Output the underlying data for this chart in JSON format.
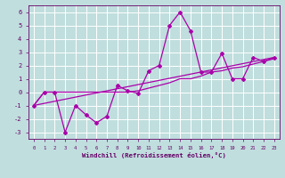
{
  "xlabel": "Windchill (Refroidissement éolien,°C)",
  "xlim": [
    -0.5,
    23.5
  ],
  "ylim": [
    -3.5,
    6.5
  ],
  "yticks": [
    -3,
    -2,
    -1,
    0,
    1,
    2,
    3,
    4,
    5,
    6
  ],
  "xticks": [
    0,
    1,
    2,
    3,
    4,
    5,
    6,
    7,
    8,
    9,
    10,
    11,
    12,
    13,
    14,
    15,
    16,
    17,
    18,
    19,
    20,
    21,
    22,
    23
  ],
  "bg_color": "#c0dede",
  "line_color": "#aa00aa",
  "grid_color": "#ffffff",
  "line1_x": [
    0,
    1,
    2,
    3,
    4,
    5,
    6,
    7,
    8,
    9,
    10,
    11,
    12,
    13,
    14,
    15,
    16,
    17,
    18,
    19,
    20,
    21,
    22,
    23
  ],
  "line1_y": [
    -1,
    0,
    0,
    -3,
    -1,
    -1.7,
    -2.3,
    -1.8,
    0.5,
    0.1,
    -0.1,
    1.6,
    2.0,
    5.0,
    6.0,
    4.6,
    1.5,
    1.5,
    2.9,
    1.0,
    1.0,
    2.6,
    2.3,
    2.6
  ],
  "line2_x": [
    0,
    1,
    2,
    3,
    4,
    5,
    6,
    7,
    8,
    9,
    10,
    11,
    12,
    13,
    14,
    15,
    16,
    17,
    18,
    19,
    20,
    21,
    22,
    23
  ],
  "line2_y": [
    -1,
    0,
    0,
    0,
    0,
    0,
    0,
    0,
    0,
    0,
    0.1,
    0.3,
    0.5,
    0.7,
    1.0,
    1.0,
    1.2,
    1.5,
    1.6,
    1.8,
    1.9,
    2.1,
    2.3,
    2.5
  ],
  "line3_x": [
    0,
    23
  ],
  "line3_y": [
    -1,
    2.6
  ],
  "font_color": "#660066"
}
